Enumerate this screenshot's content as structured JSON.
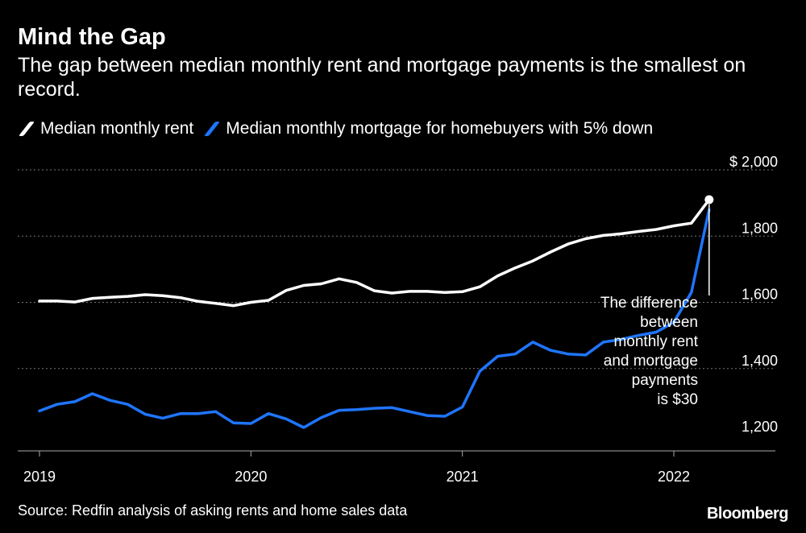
{
  "chart_data": {
    "type": "line",
    "title": "Mind the Gap",
    "subtitle": "The gap between median monthly rent and mortgage payments is the smallest on record.",
    "xlabel": "",
    "ylabel": "",
    "ylim": [
      1150,
      2050
    ],
    "xlim": [
      2019.0,
      2022.42
    ],
    "y_ticks": [
      {
        "value": 2000,
        "label": "$ 2,000"
      },
      {
        "value": 1800,
        "label": "1,800"
      },
      {
        "value": 1600,
        "label": "1,600"
      },
      {
        "value": 1400,
        "label": "1,400"
      },
      {
        "value": 1200,
        "label": "1,200"
      }
    ],
    "x_ticks": [
      {
        "value": 2019,
        "label": "2019"
      },
      {
        "value": 2020,
        "label": "2020"
      },
      {
        "value": 2021,
        "label": "2021"
      },
      {
        "value": 2022,
        "label": "2022"
      }
    ],
    "grid": true,
    "series": [
      {
        "name": "Median monthly rent",
        "color": "#ffffff",
        "x": [
          2019.0,
          2019.083,
          2019.167,
          2019.25,
          2019.333,
          2019.417,
          2019.5,
          2019.583,
          2019.667,
          2019.75,
          2019.833,
          2019.917,
          2020.0,
          2020.083,
          2020.167,
          2020.25,
          2020.333,
          2020.417,
          2020.5,
          2020.583,
          2020.667,
          2020.75,
          2020.833,
          2020.917,
          2021.0,
          2021.083,
          2021.167,
          2021.25,
          2021.333,
          2021.417,
          2021.5,
          2021.583,
          2021.667,
          2021.75,
          2021.833,
          2021.917,
          2022.0,
          2022.083,
          2022.167
        ],
        "values": [
          1604,
          1604,
          1601,
          1612,
          1615,
          1618,
          1623,
          1620,
          1614,
          1603,
          1597,
          1590,
          1600,
          1606,
          1636,
          1651,
          1656,
          1671,
          1660,
          1635,
          1628,
          1633,
          1633,
          1630,
          1632,
          1647,
          1680,
          1704,
          1725,
          1752,
          1776,
          1792,
          1802,
          1807,
          1814,
          1820,
          1831,
          1839,
          1910
        ]
      },
      {
        "name": "Median monthly mortgage for homebuyers with 5% down",
        "color": "#1f75fe",
        "x": [
          2019.0,
          2019.083,
          2019.167,
          2019.25,
          2019.333,
          2019.417,
          2019.5,
          2019.583,
          2019.667,
          2019.75,
          2019.833,
          2019.917,
          2020.0,
          2020.083,
          2020.167,
          2020.25,
          2020.333,
          2020.417,
          2020.5,
          2020.583,
          2020.667,
          2020.75,
          2020.833,
          2020.917,
          2021.0,
          2021.083,
          2021.167,
          2021.25,
          2021.333,
          2021.417,
          2021.5,
          2021.583,
          2021.667,
          2021.75,
          2021.833,
          2021.917,
          2022.0,
          2022.083,
          2022.167
        ],
        "values": [
          1272,
          1292,
          1300,
          1324,
          1304,
          1292,
          1262,
          1250,
          1264,
          1264,
          1270,
          1236,
          1234,
          1264,
          1248,
          1222,
          1252,
          1274,
          1276,
          1280,
          1282,
          1270,
          1258,
          1256,
          1284,
          1392,
          1437,
          1444,
          1480,
          1455,
          1444,
          1441,
          1480,
          1488,
          1500,
          1510,
          1540,
          1630,
          1880
        ]
      }
    ],
    "annotation": {
      "x": 2022.167,
      "lines": [
        "The difference",
        "between",
        "monthly rent",
        "and mortgage",
        "payments",
        "is $30"
      ]
    }
  },
  "legend_items": [
    {
      "label": "Median monthly rent",
      "color": "#ffffff"
    },
    {
      "label": "Median monthly mortgage for homebuyers with 5% down",
      "color": "#1f75fe"
    }
  ],
  "footer": {
    "source": "Source: Redfin analysis of asking rents and home sales data",
    "brand": "Bloomberg"
  }
}
